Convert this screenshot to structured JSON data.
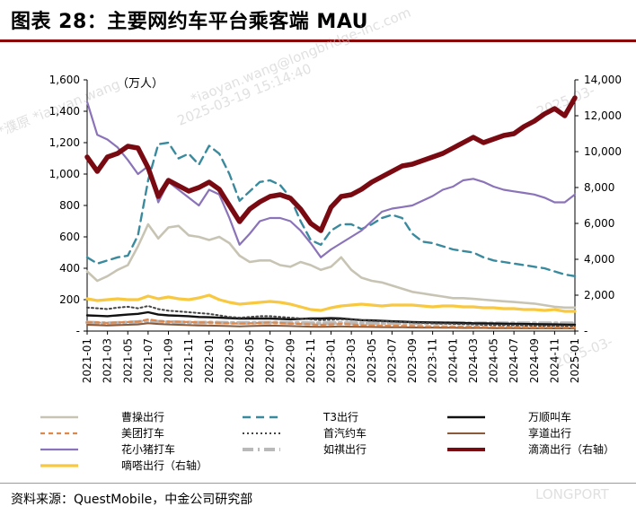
{
  "figure_title": "图表 28：主要网约车平台乘客端 MAU",
  "source": "资料来源：QuestMobile，中金公司研究部",
  "watermarks": [
    "*iaoyan.wang@longbridge-inc.com",
    "2025-03-19 15:14:40",
    "*濮原 *iaoyan.wang",
    "2025-03-",
    "LONGPORT"
  ],
  "colors": {
    "title_rule": "#8b0000",
    "caocao": "#c8c4b4",
    "t3": "#3a8a9e",
    "wanshun": "#111111",
    "meituan": "#e0884a",
    "shouqi": "#444444",
    "xiangdao": "#8a5a3a",
    "huaxiaozhu": "#8a73b8",
    "ruqi": "#b9b9b9",
    "didi": "#7a0a12",
    "dida": "#f8c840"
  },
  "chart_data": {
    "type": "line",
    "title": "图表 28：主要网约车平台乘客端 MAU",
    "left_unit": "（万人）",
    "ylim_left": [
      0,
      1600
    ],
    "ylim_right": [
      0,
      14000
    ],
    "left_ticks": [
      "-",
      "200",
      "400",
      "600",
      "800",
      "1,000",
      "1,200",
      "1,400",
      "1,600"
    ],
    "right_ticks": [
      "-",
      "2,000",
      "4,000",
      "6,000",
      "8,000",
      "10,000",
      "12,000",
      "14,000"
    ],
    "x_tick_labels": [
      "2021-01",
      "2021-03",
      "2021-05",
      "2021-07",
      "2021-09",
      "2021-11",
      "2022-01",
      "2022-03",
      "2022-05",
      "2022-07",
      "2022-09",
      "2022-11",
      "2023-01",
      "2023-03",
      "2023-05",
      "2023-07",
      "2023-09",
      "2023-11",
      "2024-01",
      "2024-03",
      "2024-05",
      "2024-07",
      "2024-09",
      "2024-11",
      "2025-01"
    ],
    "x_start": "2021-01",
    "n_points": 49,
    "series": [
      {
        "key": "caocao",
        "name": "曹操出行",
        "axis": "left",
        "style": "solid",
        "values": [
          380,
          320,
          350,
          390,
          420,
          540,
          680,
          590,
          660,
          670,
          610,
          600,
          580,
          600,
          560,
          480,
          440,
          450,
          450,
          420,
          410,
          440,
          420,
          390,
          410,
          470,
          390,
          340,
          320,
          310,
          290,
          270,
          250,
          240,
          230,
          220,
          210,
          210,
          205,
          200,
          195,
          190,
          185,
          180,
          175,
          165,
          155,
          150,
          150
        ]
      },
      {
        "key": "t3",
        "name": "T3出行",
        "axis": "left",
        "style": "dashed",
        "values": [
          470,
          430,
          450,
          470,
          480,
          610,
          960,
          1190,
          1200,
          1100,
          1130,
          1060,
          1180,
          1130,
          1000,
          830,
          890,
          950,
          960,
          930,
          850,
          700,
          580,
          550,
          640,
          680,
          680,
          650,
          680,
          720,
          740,
          720,
          620,
          570,
          560,
          540,
          520,
          510,
          500,
          470,
          450,
          440,
          430,
          420,
          410,
          400,
          380,
          360,
          350
        ]
      },
      {
        "key": "wanshun",
        "name": "万顺叫车",
        "axis": "left",
        "style": "solid",
        "values": [
          100,
          98,
          95,
          100,
          105,
          110,
          120,
          105,
          100,
          98,
          95,
          90,
          88,
          85,
          82,
          80,
          80,
          80,
          80,
          78,
          75,
          78,
          80,
          80,
          82,
          80,
          75,
          70,
          68,
          65,
          62,
          60,
          58,
          56,
          55,
          54,
          53,
          52,
          50,
          49,
          48,
          47,
          46,
          45,
          44,
          43,
          42,
          41,
          40
        ]
      },
      {
        "key": "meituan",
        "name": "美团打车",
        "axis": "left",
        "style": "dashed",
        "values": [
          55,
          55,
          52,
          55,
          58,
          60,
          75,
          65,
          60,
          60,
          58,
          55,
          55,
          52,
          50,
          48,
          50,
          52,
          55,
          52,
          48,
          45,
          42,
          40,
          42,
          45,
          42,
          38,
          36,
          35,
          34,
          33,
          32,
          31,
          30,
          30,
          29,
          28,
          28,
          27,
          27,
          26,
          26,
          25,
          25,
          24,
          24,
          23,
          23
        ]
      },
      {
        "key": "shouqi",
        "name": "首汽约车",
        "axis": "left",
        "style": "dotted",
        "values": [
          150,
          145,
          140,
          150,
          155,
          145,
          160,
          140,
          130,
          125,
          120,
          115,
          110,
          100,
          90,
          85,
          90,
          95,
          95,
          90,
          85,
          80,
          75,
          70,
          72,
          75,
          72,
          68,
          65,
          62,
          60,
          58,
          55,
          52,
          50,
          48,
          46,
          44,
          42,
          40,
          39,
          38,
          37,
          36,
          35,
          34,
          33,
          32,
          32
        ]
      },
      {
        "key": "xiangdao",
        "name": "享道出行",
        "axis": "left",
        "style": "solid",
        "values": [
          40,
          38,
          36,
          38,
          40,
          42,
          50,
          45,
          42,
          40,
          38,
          36,
          35,
          34,
          32,
          30,
          32,
          34,
          35,
          34,
          32,
          30,
          28,
          27,
          28,
          30,
          28,
          27,
          26,
          25,
          24,
          24,
          23,
          22,
          22,
          21,
          21,
          20,
          20,
          20,
          19,
          19,
          19,
          18,
          18,
          18,
          17,
          17,
          17
        ]
      },
      {
        "key": "huaxiaozhu",
        "name": "花小猪打车",
        "axis": "left",
        "style": "solid",
        "values": [
          1460,
          1250,
          1220,
          1170,
          1090,
          1000,
          1050,
          820,
          950,
          900,
          850,
          800,
          900,
          870,
          720,
          550,
          620,
          700,
          720,
          720,
          700,
          640,
          560,
          470,
          520,
          560,
          600,
          640,
          700,
          760,
          780,
          790,
          800,
          830,
          860,
          900,
          920,
          960,
          970,
          950,
          920,
          900,
          890,
          880,
          870,
          850,
          820,
          820,
          870
        ]
      },
      {
        "key": "ruqi",
        "name": "如祺出行",
        "axis": "left",
        "style": "dashdot",
        "values": [
          55,
          52,
          50,
          52,
          55,
          58,
          65,
          60,
          58,
          56,
          55,
          54,
          55,
          54,
          53,
          52,
          52,
          53,
          54,
          53,
          52,
          52,
          51,
          50,
          51,
          52,
          51,
          50,
          50,
          50,
          50,
          50,
          50,
          50,
          50,
          50,
          50,
          50,
          50,
          50,
          50,
          50,
          50,
          50,
          50,
          50,
          50,
          50,
          50
        ]
      },
      {
        "key": "didi",
        "name": "滴滴出行（右轴）",
        "axis": "right",
        "style": "solid",
        "values": [
          9700,
          8900,
          9700,
          9900,
          10300,
          10200,
          9100,
          7500,
          8400,
          8100,
          7800,
          8000,
          8300,
          7900,
          7000,
          6100,
          6800,
          7200,
          7500,
          7600,
          7400,
          6800,
          6000,
          5600,
          6900,
          7500,
          7600,
          7900,
          8300,
          8600,
          8900,
          9200,
          9300,
          9500,
          9700,
          9900,
          10200,
          10500,
          10800,
          10500,
          10700,
          10900,
          11000,
          11400,
          11700,
          12100,
          12400,
          12000,
          13000
        ]
      },
      {
        "key": "dida",
        "name": "嘀嗒出行（右轴）",
        "axis": "right",
        "style": "solid",
        "values": [
          1800,
          1700,
          1750,
          1800,
          1750,
          1750,
          1950,
          1800,
          1900,
          1800,
          1750,
          1850,
          2000,
          1750,
          1600,
          1500,
          1550,
          1600,
          1650,
          1600,
          1500,
          1350,
          1200,
          1150,
          1300,
          1400,
          1450,
          1500,
          1450,
          1400,
          1450,
          1450,
          1450,
          1400,
          1350,
          1400,
          1400,
          1350,
          1350,
          1300,
          1300,
          1250,
          1250,
          1200,
          1200,
          1150,
          1200,
          1100,
          1100
        ]
      }
    ],
    "legend": [
      [
        "caocao",
        "t3",
        "wanshun"
      ],
      [
        "meituan",
        "shouqi",
        "xiangdao"
      ],
      [
        "huaxiaozhu",
        "ruqi",
        "didi"
      ],
      [
        "dida"
      ]
    ]
  }
}
